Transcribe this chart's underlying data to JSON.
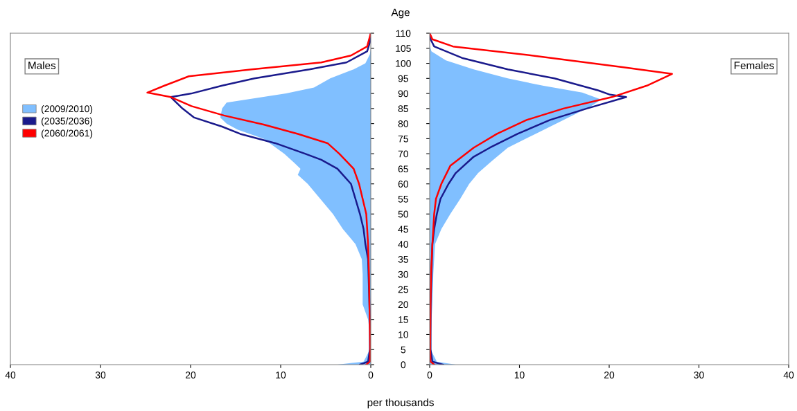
{
  "chart_data": [
    {
      "type": "line",
      "title": "Males",
      "orientation": "horizontal",
      "xlim": [
        40,
        0
      ],
      "xticks": [
        40,
        30,
        20,
        10,
        0
      ],
      "ylim": [
        0,
        110
      ],
      "yticks": [
        0,
        5,
        10,
        15,
        20,
        25,
        30,
        35,
        40,
        45,
        50,
        55,
        60,
        65,
        70,
        75,
        80,
        85,
        90,
        95,
        100,
        105,
        110
      ],
      "tick_labels": "x",
      "grid": false,
      "legend": "top left",
      "series": [
        {
          "name": "(2009/2010)",
          "type": "area",
          "color": "#80bfff",
          "x": [
            0,
            1,
            5,
            10,
            15,
            20,
            25,
            30,
            35,
            40,
            45,
            50,
            55,
            60,
            63,
            65,
            67,
            70,
            75,
            78,
            80,
            82,
            85,
            87,
            90,
            92,
            95,
            98,
            100,
            103,
            105,
            110
          ],
          "values": [
            3.7,
            0.8,
            0.1,
            0.1,
            0.3,
            0.9,
            0.9,
            0.9,
            1.0,
            1.7,
            3.1,
            4.2,
            5.6,
            7.0,
            8.1,
            7.8,
            8.5,
            9.6,
            11.9,
            14.8,
            16.0,
            16.7,
            16.5,
            16.0,
            9.4,
            6.3,
            4.5,
            1.9,
            0.6,
            0.1,
            0,
            0
          ]
        },
        {
          "name": "(2035/2036)",
          "color": "#1a1a8c",
          "x": [
            0,
            1,
            5,
            15,
            25,
            35,
            40,
            45,
            50,
            55,
            60,
            65,
            68,
            70,
            73.5,
            76.6,
            79,
            82,
            85,
            88.8,
            90,
            92.6,
            95,
            98,
            100.3,
            104,
            107,
            110
          ],
          "values": [
            1.2,
            0.3,
            0.1,
            0.1,
            0.2,
            0.3,
            0.6,
            0.8,
            1.2,
            1.7,
            2.2,
            3.7,
            5.5,
            7.3,
            10.6,
            14.5,
            16.5,
            19.6,
            20.9,
            22.2,
            19.9,
            16.5,
            12.9,
            6.8,
            2.7,
            0.4,
            0.1,
            0
          ]
        },
        {
          "name": "(2060/2061)",
          "color": "#ff0000",
          "x": [
            0,
            1,
            5,
            20,
            30,
            40,
            50,
            55,
            60,
            65,
            70,
            73.5,
            76.6,
            79.7,
            82.7,
            85.8,
            88.8,
            90.3,
            92.6,
            95.7,
            98,
            100.3,
            102.6,
            105.6,
            110
          ],
          "values": [
            0.5,
            0.1,
            0.05,
            0.15,
            0.2,
            0.3,
            0.5,
            0.9,
            1.3,
            1.9,
            3.5,
            4.8,
            8.1,
            11.9,
            16.3,
            19.9,
            22.2,
            24.8,
            22.9,
            20.2,
            13.2,
            5.5,
            2.2,
            0.4,
            0
          ]
        }
      ]
    },
    {
      "type": "line",
      "title": "Females",
      "orientation": "horizontal",
      "xlabel": "per thousands",
      "ylabel": "Age",
      "xlim": [
        0,
        40
      ],
      "xticks": [
        0,
        10,
        20,
        30,
        40
      ],
      "ylim": [
        0,
        110
      ],
      "yticks": [
        0,
        5,
        10,
        15,
        20,
        25,
        30,
        35,
        40,
        45,
        50,
        55,
        60,
        65,
        70,
        75,
        80,
        85,
        90,
        95,
        100,
        105,
        110
      ],
      "grid": false,
      "series": [
        {
          "type": "area",
          "color": "#80bfff",
          "x": [
            0,
            1,
            5,
            15,
            20,
            30,
            40,
            45,
            50,
            55,
            60,
            63.6,
            67.5,
            72,
            76.6,
            81.2,
            85.8,
            88,
            90.3,
            92.6,
            95,
            98,
            101,
            104,
            106,
            110
          ],
          "values": [
            2.9,
            0.8,
            0.1,
            0.2,
            0.3,
            0.4,
            0.6,
            1.3,
            2.3,
            3.4,
            4.4,
            5.4,
            6.9,
            8.7,
            11.8,
            14.9,
            18.0,
            19.1,
            17.0,
            12.6,
            8.7,
            4.9,
            1.8,
            0.2,
            0,
            0
          ]
        },
        {
          "color": "#1a1a8c",
          "x": [
            0,
            1,
            5,
            20,
            30,
            40,
            45,
            50,
            55,
            60,
            63.6,
            69,
            72,
            76.6,
            81.2,
            85,
            88.8,
            89.6,
            91,
            95,
            98,
            101.8,
            105.6,
            108,
            110
          ],
          "values": [
            1.5,
            0.3,
            0.1,
            0.1,
            0.2,
            0.3,
            0.5,
            0.8,
            1.2,
            2.1,
            2.9,
            4.9,
            6.7,
            9.8,
            13.4,
            17.5,
            21.9,
            20.1,
            18.8,
            13.9,
            8.7,
            3.6,
            0.5,
            0.1,
            0
          ]
        },
        {
          "color": "#ff0000",
          "x": [
            0,
            1,
            5,
            20,
            30,
            40,
            50,
            55,
            60,
            66,
            72,
            76.6,
            81.2,
            85,
            88.8,
            92.6,
            96.5,
            98.7,
            102.6,
            105.6,
            108,
            110
          ],
          "values": [
            0.5,
            0.1,
            0.05,
            0.1,
            0.15,
            0.3,
            0.5,
            0.7,
            1.3,
            2.3,
            4.9,
            7.5,
            10.8,
            14.9,
            20.3,
            24.2,
            27.0,
            21.6,
            11.4,
            2.6,
            0.3,
            0
          ]
        }
      ]
    }
  ]
}
